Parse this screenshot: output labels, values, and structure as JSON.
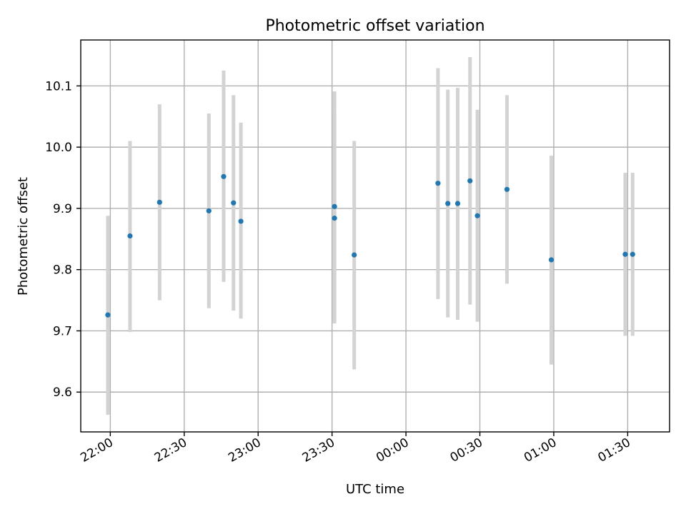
{
  "chart_data": {
    "type": "scatter",
    "title": "Photometric offset variation",
    "xlabel": "UTC time",
    "ylabel": "Photometric offset",
    "x_unit": "UTC time of day (date rolls over after 00:00)",
    "xlim": [
      "21:48",
      "01:47"
    ],
    "ylim": [
      9.535,
      10.175
    ],
    "xticks": [
      "22:00",
      "22:30",
      "23:00",
      "23:30",
      "00:00",
      "00:30",
      "01:00",
      "01:30"
    ],
    "yticks": [
      9.6,
      9.7,
      9.8,
      9.9,
      10.0,
      10.1
    ],
    "ytick_labels": [
      "9.6",
      "9.7",
      "9.8",
      "9.9",
      "10.0",
      "10.1"
    ],
    "grid": true,
    "colors": {
      "point": "#1f77b4",
      "errorbar": "#d3d3d3"
    },
    "points": [
      {
        "x": "21:59",
        "y": 9.726,
        "ylow": 9.563,
        "yhigh": 9.888
      },
      {
        "x": "22:08",
        "y": 9.855,
        "ylow": 9.698,
        "yhigh": 10.01
      },
      {
        "x": "22:20",
        "y": 9.91,
        "ylow": 9.75,
        "yhigh": 10.07
      },
      {
        "x": "22:40",
        "y": 9.896,
        "ylow": 9.737,
        "yhigh": 10.055
      },
      {
        "x": "22:46",
        "y": 9.952,
        "ylow": 9.78,
        "yhigh": 10.125
      },
      {
        "x": "22:50",
        "y": 9.909,
        "ylow": 9.733,
        "yhigh": 10.085
      },
      {
        "x": "22:53",
        "y": 9.879,
        "ylow": 9.72,
        "yhigh": 10.04
      },
      {
        "x": "23:31",
        "y": 9.903,
        "ylow": 9.715,
        "yhigh": 10.091
      },
      {
        "x": "23:31",
        "y": 9.884,
        "ylow": 9.712,
        "yhigh": 10.055
      },
      {
        "x": "23:39",
        "y": 9.824,
        "ylow": 9.637,
        "yhigh": 10.01
      },
      {
        "x": "00:13",
        "y": 9.941,
        "ylow": 9.752,
        "yhigh": 10.129
      },
      {
        "x": "00:17",
        "y": 9.908,
        "ylow": 9.722,
        "yhigh": 10.094
      },
      {
        "x": "00:21",
        "y": 9.908,
        "ylow": 9.718,
        "yhigh": 10.097
      },
      {
        "x": "00:26",
        "y": 9.945,
        "ylow": 9.743,
        "yhigh": 10.147
      },
      {
        "x": "00:29",
        "y": 9.888,
        "ylow": 9.715,
        "yhigh": 10.061
      },
      {
        "x": "00:41",
        "y": 9.931,
        "ylow": 9.777,
        "yhigh": 10.085
      },
      {
        "x": "00:59",
        "y": 9.816,
        "ylow": 9.645,
        "yhigh": 9.986
      },
      {
        "x": "01:29",
        "y": 9.825,
        "ylow": 9.692,
        "yhigh": 9.958
      },
      {
        "x": "01:32",
        "y": 9.825,
        "ylow": 9.692,
        "yhigh": 9.958
      }
    ]
  }
}
